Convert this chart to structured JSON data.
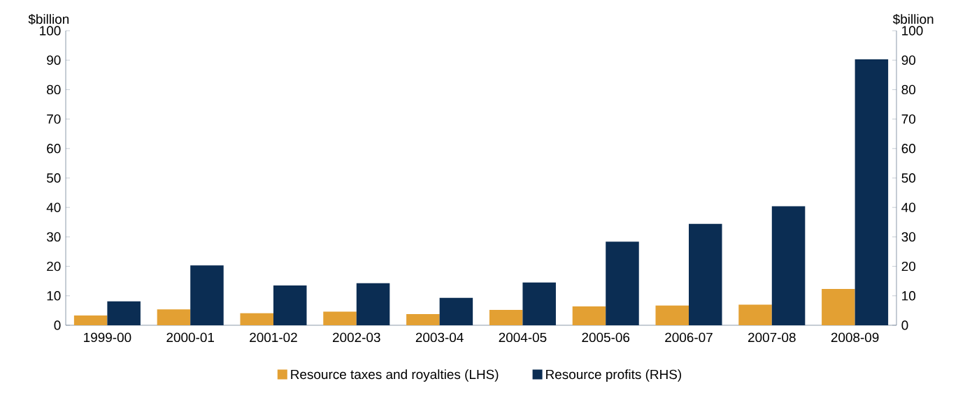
{
  "chart_data": {
    "type": "bar",
    "ylabel": "$billion",
    "y2label": "$billion",
    "categories": [
      "1999-00",
      "2000-01",
      "2001-02",
      "2002-03",
      "2003-04",
      "2004-05",
      "2005-06",
      "2006-07",
      "2007-08",
      "2008-09"
    ],
    "series": [
      {
        "name": "Resource taxes and royalties (LHS)",
        "color": "#e3a033",
        "values": [
          3.3,
          5.4,
          4.1,
          4.6,
          3.8,
          5.2,
          6.4,
          6.7,
          7.0,
          12.3
        ]
      },
      {
        "name": "Resource profits (RHS)",
        "color": "#0b2d53",
        "axis": "y2",
        "values": [
          8.1,
          20.3,
          13.5,
          14.3,
          9.3,
          14.5,
          28.4,
          34.4,
          40.4,
          90.3
        ]
      }
    ],
    "ylim": [
      0,
      100
    ],
    "yticks": [
      0,
      10,
      20,
      30,
      40,
      50,
      60,
      70,
      80,
      90,
      100
    ],
    "y2lim": [
      0,
      100
    ],
    "y2ticks": [
      0,
      10,
      20,
      30,
      40,
      50,
      60,
      70,
      80,
      90,
      100
    ],
    "grid": false,
    "legend": "bottom"
  }
}
